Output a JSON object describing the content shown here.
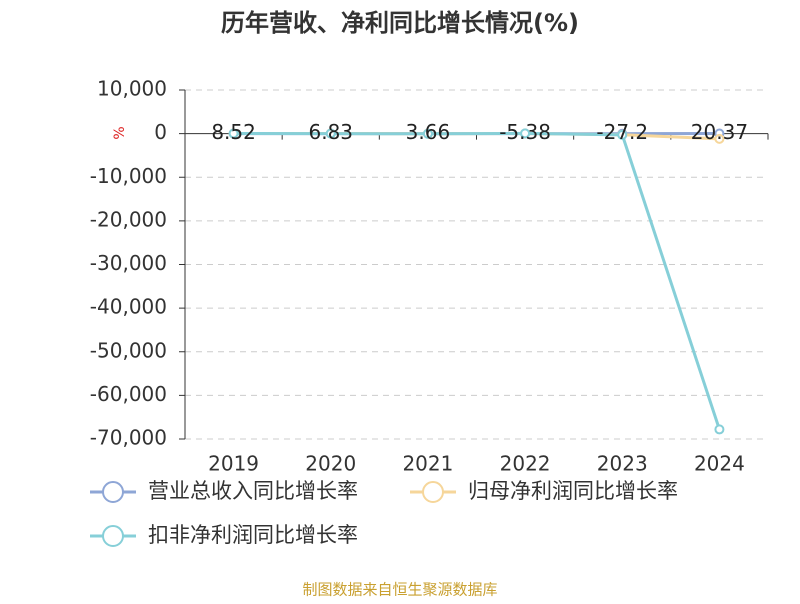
{
  "chart_data": {
    "type": "line",
    "title": "历年营收、净利同比增长情况(%)",
    "y_label": "%",
    "categories": [
      "2019",
      "2020",
      "2021",
      "2022",
      "2023",
      "2024"
    ],
    "series": [
      {
        "name": "营业总收入同比增长率",
        "color": "#8ea6d6",
        "values": [
          8.52,
          6.83,
          3.66,
          -5.38,
          -27.2,
          20.37
        ]
      },
      {
        "name": "归母净利润同比增长率",
        "color": "#f6d69a",
        "values": [
          30,
          25,
          -20,
          40,
          -250,
          -1200
        ]
      },
      {
        "name": "扣非净利润同比增长率",
        "color": "#86cfd8",
        "values": [
          20,
          15,
          -40,
          60,
          -300,
          -67800
        ]
      }
    ],
    "ylim": [
      -70000,
      10000
    ],
    "yticks": [
      {
        "value": 10000,
        "label": "10,000"
      },
      0,
      {
        "value": -10000,
        "label": "-10,000"
      },
      {
        "value": -20000,
        "label": "-20,000"
      },
      {
        "value": -30000,
        "label": "-30,000"
      },
      {
        "value": -40000,
        "label": "-40,000"
      },
      {
        "value": -50000,
        "label": "-50,000"
      },
      {
        "value": -60000,
        "label": "-60,000"
      },
      {
        "value": -70000,
        "label": "-70,000"
      }
    ],
    "grid": true,
    "data_labels_series": 0,
    "source": "制图数据来自恒生聚源数据库"
  }
}
